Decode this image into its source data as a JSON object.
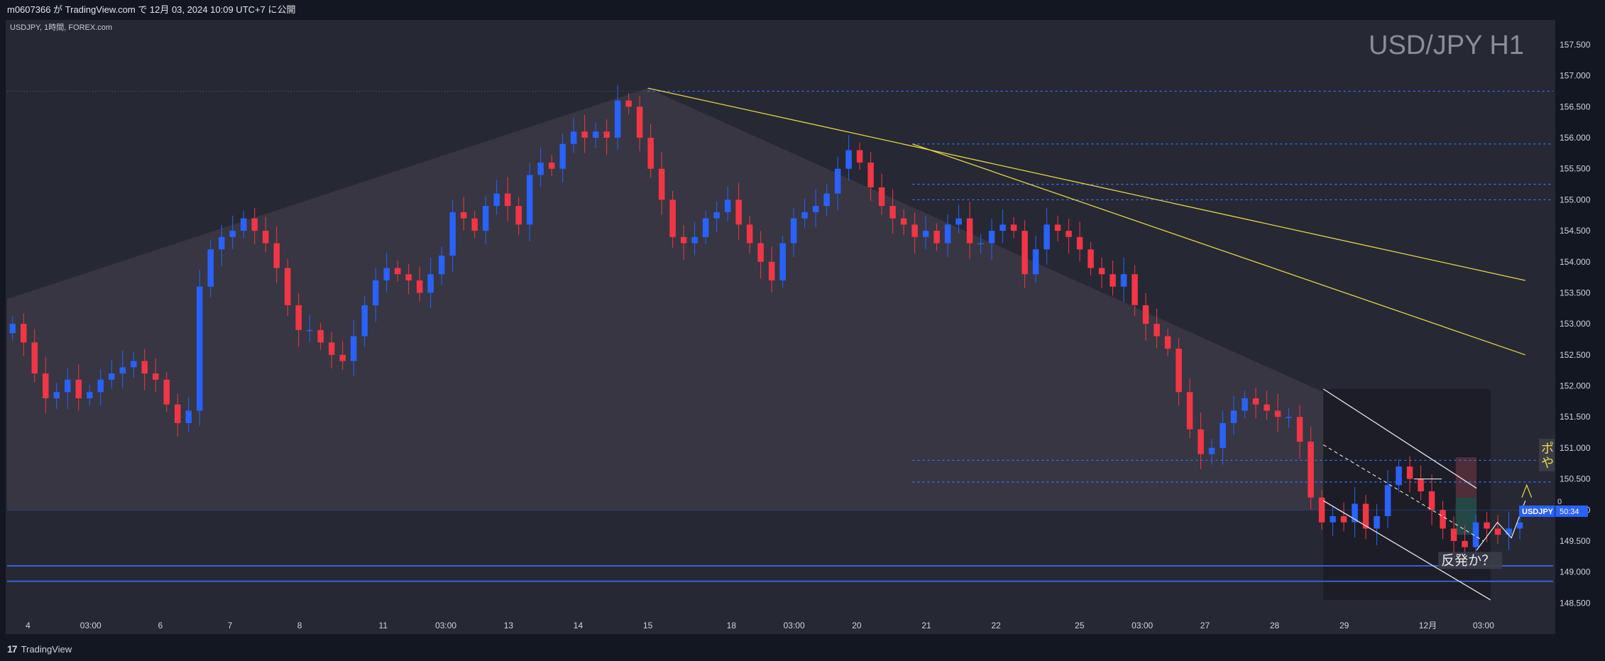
{
  "header": {
    "publish_line": "m0607366 が TradingView.com で 12月 03, 2024 10:09 UTC+7 に公開"
  },
  "footer": {
    "brand": "TradingView",
    "brand_mark": "17"
  },
  "chart_data": {
    "type": "candlestick",
    "symbol_line": "USDJPY, 1時間, FOREX.com",
    "watermark": "USD/JPY H1",
    "y_ticks": [
      157.5,
      157.0,
      156.5,
      156.0,
      155.5,
      155.0,
      154.5,
      154.0,
      153.5,
      153.0,
      152.5,
      152.0,
      151.5,
      151.0,
      150.5,
      150.0,
      149.5,
      149.0,
      148.5
    ],
    "y_tick_labels": [
      "157.500",
      "157.000",
      "156.500",
      "156.000",
      "155.500",
      "155.000",
      "154.500",
      "154.000",
      "153.500",
      "153.000",
      "152.500",
      "152.000",
      "151.500",
      "151.000",
      "150.500",
      "150.000",
      "149.500",
      "149.000",
      "148.500"
    ],
    "ylim": [
      148.0,
      157.9
    ],
    "x_ticks": [
      {
        "label": "4",
        "index": 3
      },
      {
        "label": "03:00",
        "index": 12
      },
      {
        "label": "6",
        "index": 22
      },
      {
        "label": "7",
        "index": 32
      },
      {
        "label": "8",
        "index": 42
      },
      {
        "label": "11",
        "index": 54
      },
      {
        "label": "03:00",
        "index": 63
      },
      {
        "label": "13",
        "index": 72
      },
      {
        "label": "14",
        "index": 82
      },
      {
        "label": "15",
        "index": 92
      },
      {
        "label": "18",
        "index": 104
      },
      {
        "label": "03:00",
        "index": 113
      },
      {
        "label": "20",
        "index": 122
      },
      {
        "label": "21",
        "index": 132
      },
      {
        "label": "22",
        "index": 142
      },
      {
        "label": "25",
        "index": 154
      },
      {
        "label": "03:00",
        "index": 163
      },
      {
        "label": "27",
        "index": 172
      },
      {
        "label": "28",
        "index": 182
      },
      {
        "label": "29",
        "index": 192
      },
      {
        "label": "12月",
        "index": 204
      },
      {
        "label": "03:00",
        "index": 212
      }
    ],
    "closes": [
      153.0,
      152.7,
      152.2,
      151.8,
      151.9,
      152.1,
      151.8,
      151.9,
      152.1,
      152.2,
      152.3,
      152.4,
      152.2,
      152.1,
      151.7,
      151.4,
      151.6,
      153.6,
      154.2,
      154.4,
      154.5,
      154.7,
      154.5,
      154.3,
      153.9,
      153.3,
      152.9,
      152.9,
      152.7,
      152.5,
      152.4,
      152.8,
      153.3,
      153.7,
      153.9,
      153.8,
      153.7,
      153.5,
      153.8,
      154.1,
      154.8,
      154.7,
      154.5,
      154.9,
      155.1,
      154.9,
      154.6,
      155.4,
      155.6,
      155.5,
      155.9,
      156.1,
      156.0,
      156.1,
      156.0,
      156.6,
      156.5,
      156.0,
      155.5,
      155.0,
      154.4,
      154.3,
      154.4,
      154.7,
      154.8,
      155.0,
      154.6,
      154.3,
      154.0,
      153.7,
      154.3,
      154.7,
      154.8,
      154.9,
      155.1,
      155.5,
      155.8,
      155.6,
      155.2,
      154.9,
      154.7,
      154.6,
      154.4,
      154.5,
      154.3,
      154.6,
      154.7,
      154.3,
      154.3,
      154.5,
      154.6,
      154.5,
      153.8,
      154.2,
      154.6,
      154.5,
      154.4,
      154.2,
      153.9,
      153.8,
      153.6,
      153.8,
      153.3,
      153.0,
      152.8,
      152.6,
      151.9,
      151.3,
      150.9,
      151.0,
      151.4,
      151.6,
      151.8,
      151.7,
      151.6,
      151.5,
      151.5,
      151.1,
      150.2,
      149.8,
      149.9,
      149.8,
      150.1,
      149.7,
      149.9,
      150.4,
      150.7,
      150.5,
      150.3,
      150.0,
      149.7,
      149.5,
      149.4,
      149.8,
      149.7,
      149.6,
      149.7,
      149.8
    ],
    "horizontal_levels": [
      156.75,
      155.9,
      155.25,
      155.0,
      150.8,
      150.45,
      149.1,
      148.85
    ],
    "trendlines": [
      {
        "from": [
          92,
          156.8
        ],
        "to": [
          218,
          153.7
        ]
      },
      {
        "from": [
          130,
          155.9
        ],
        "to": [
          218,
          152.5
        ]
      }
    ],
    "channel": {
      "upper": [
        [
          189,
          151.95
        ],
        [
          211,
          150.35
        ]
      ],
      "lower": [
        [
          189,
          150.15
        ],
        [
          213,
          148.55
        ]
      ]
    },
    "annotations": {
      "rebound_label": "反発か？",
      "side_label_1": "ポ",
      "side_label_2": "や"
    },
    "last_price": {
      "symbol": "USDJPY",
      "countdown": "50:34",
      "value": 149.98,
      "tick_hint": "0"
    }
  }
}
